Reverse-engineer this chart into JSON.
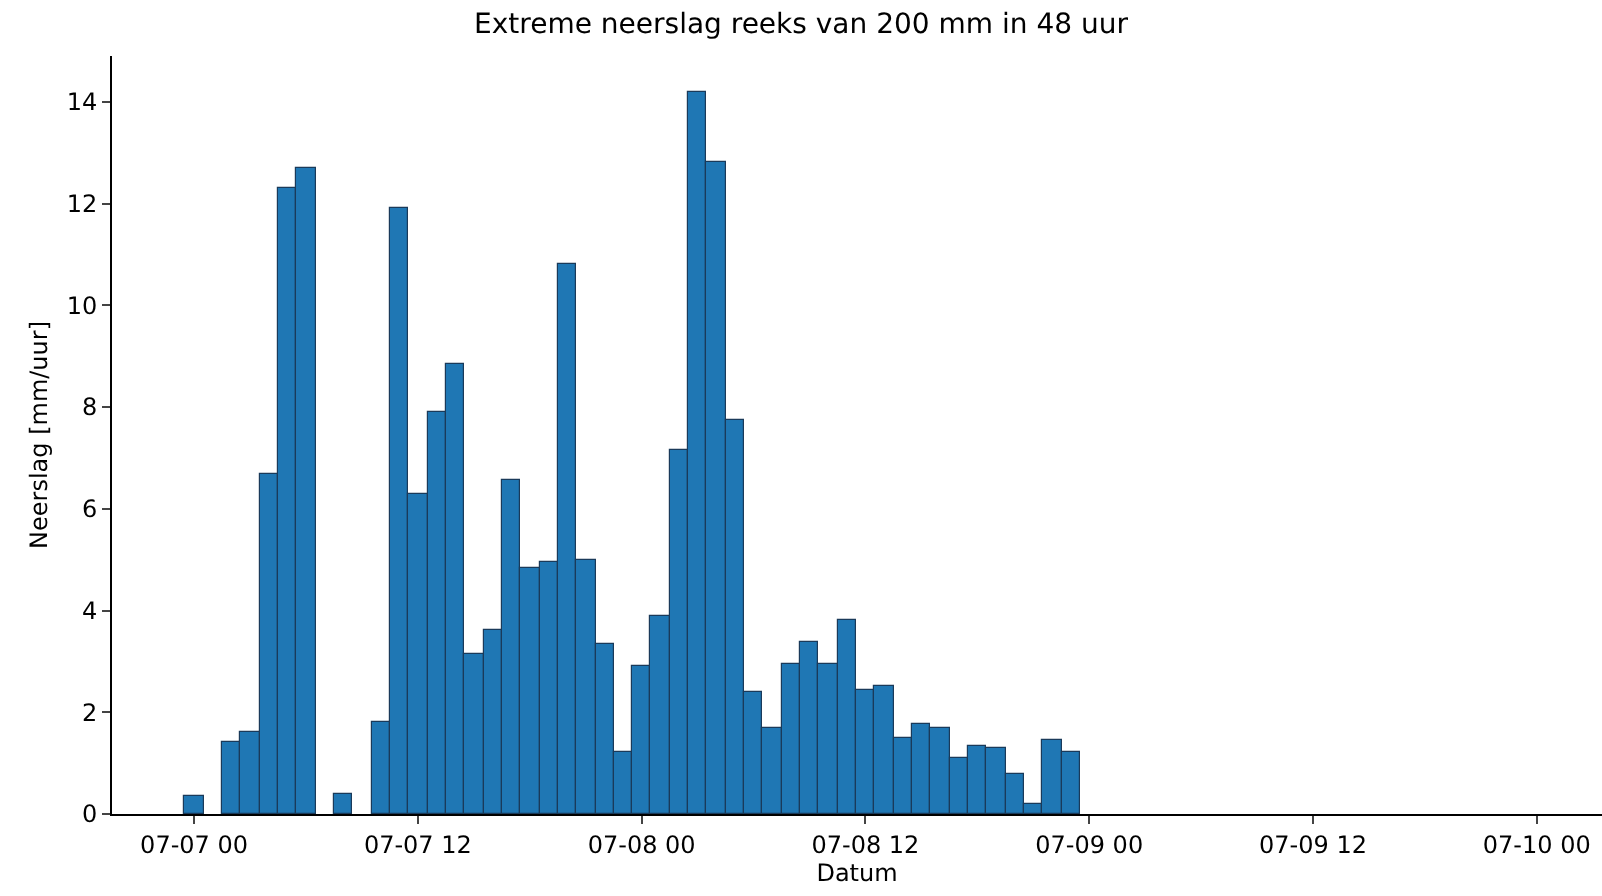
{
  "chart_data": {
    "type": "bar",
    "title": "Extreme neerslag reeks van 200 mm in 48 uur",
    "xlabel": "Datum",
    "ylabel": "Neerslag [mm/uur]",
    "x": [
      "--07-07T00:00",
      "--07-07T01:00",
      "--07-07T02:00",
      "--07-07T03:00",
      "--07-07T04:00",
      "--07-07T05:00",
      "--07-07T06:00",
      "--07-07T07:00",
      "--07-07T08:00",
      "--07-07T09:00",
      "--07-07T10:00",
      "--07-07T11:00",
      "--07-07T12:00",
      "--07-07T13:00",
      "--07-07T14:00",
      "--07-07T15:00",
      "--07-07T16:00",
      "--07-07T17:00",
      "--07-07T18:00",
      "--07-07T19:00",
      "--07-07T20:00",
      "--07-07T21:00",
      "--07-07T22:00",
      "--07-07T23:00",
      "--07-08T00:00",
      "--07-08T01:00",
      "--07-08T02:00",
      "--07-08T03:00",
      "--07-08T04:00",
      "--07-08T05:00",
      "--07-08T06:00",
      "--07-08T07:00",
      "--07-08T08:00",
      "--07-08T09:00",
      "--07-08T10:00",
      "--07-08T11:00",
      "--07-08T12:00",
      "--07-08T13:00",
      "--07-08T14:00",
      "--07-08T15:00",
      "--07-08T16:00",
      "--07-08T17:00",
      "--07-08T18:00",
      "--07-08T19:00",
      "--07-08T20:00",
      "--07-08T21:00",
      "--07-08T22:00",
      "--07-08T23:00"
    ],
    "values": [
      0.35,
      null,
      1.4,
      1.6,
      6.7,
      12.3,
      12.7,
      null,
      0.4,
      null,
      1.8,
      11.9,
      6.3,
      7.9,
      8.85,
      3.15,
      3.6,
      6.55,
      4.85,
      4.95,
      10.8,
      5.0,
      3.35,
      1.2,
      2.9,
      3.9,
      7.15,
      14.2,
      12.8,
      7.75,
      2.4,
      1.7,
      2.95,
      3.4,
      2.95,
      3.8,
      2.45,
      2.5,
      1.5,
      1.75,
      1.7,
      1.1,
      1.35,
      1.3,
      0.8,
      0.2,
      1.45,
      1.2
    ],
    "color": "#1f77b4",
    "xlim": [
      "--07-06T19:36",
      "--07-10T03:30"
    ],
    "xticks": [
      {
        "value": "--07-07T00:00",
        "label": "07-07 00"
      },
      {
        "value": "--07-07T12:00",
        "label": "07-07 12"
      },
      {
        "value": "--07-08T00:00",
        "label": "07-08 00"
      },
      {
        "value": "--07-08T12:00",
        "label": "07-08 12"
      },
      {
        "value": "--07-09T00:00",
        "label": "07-09 00"
      },
      {
        "value": "--07-09T12:00",
        "label": "07-09 12"
      },
      {
        "value": "--07-10T00:00",
        "label": "07-10 00"
      }
    ],
    "ylim": [
      0,
      14.9
    ],
    "yticks": [
      0,
      2,
      4,
      6,
      8,
      10,
      12,
      14
    ]
  }
}
